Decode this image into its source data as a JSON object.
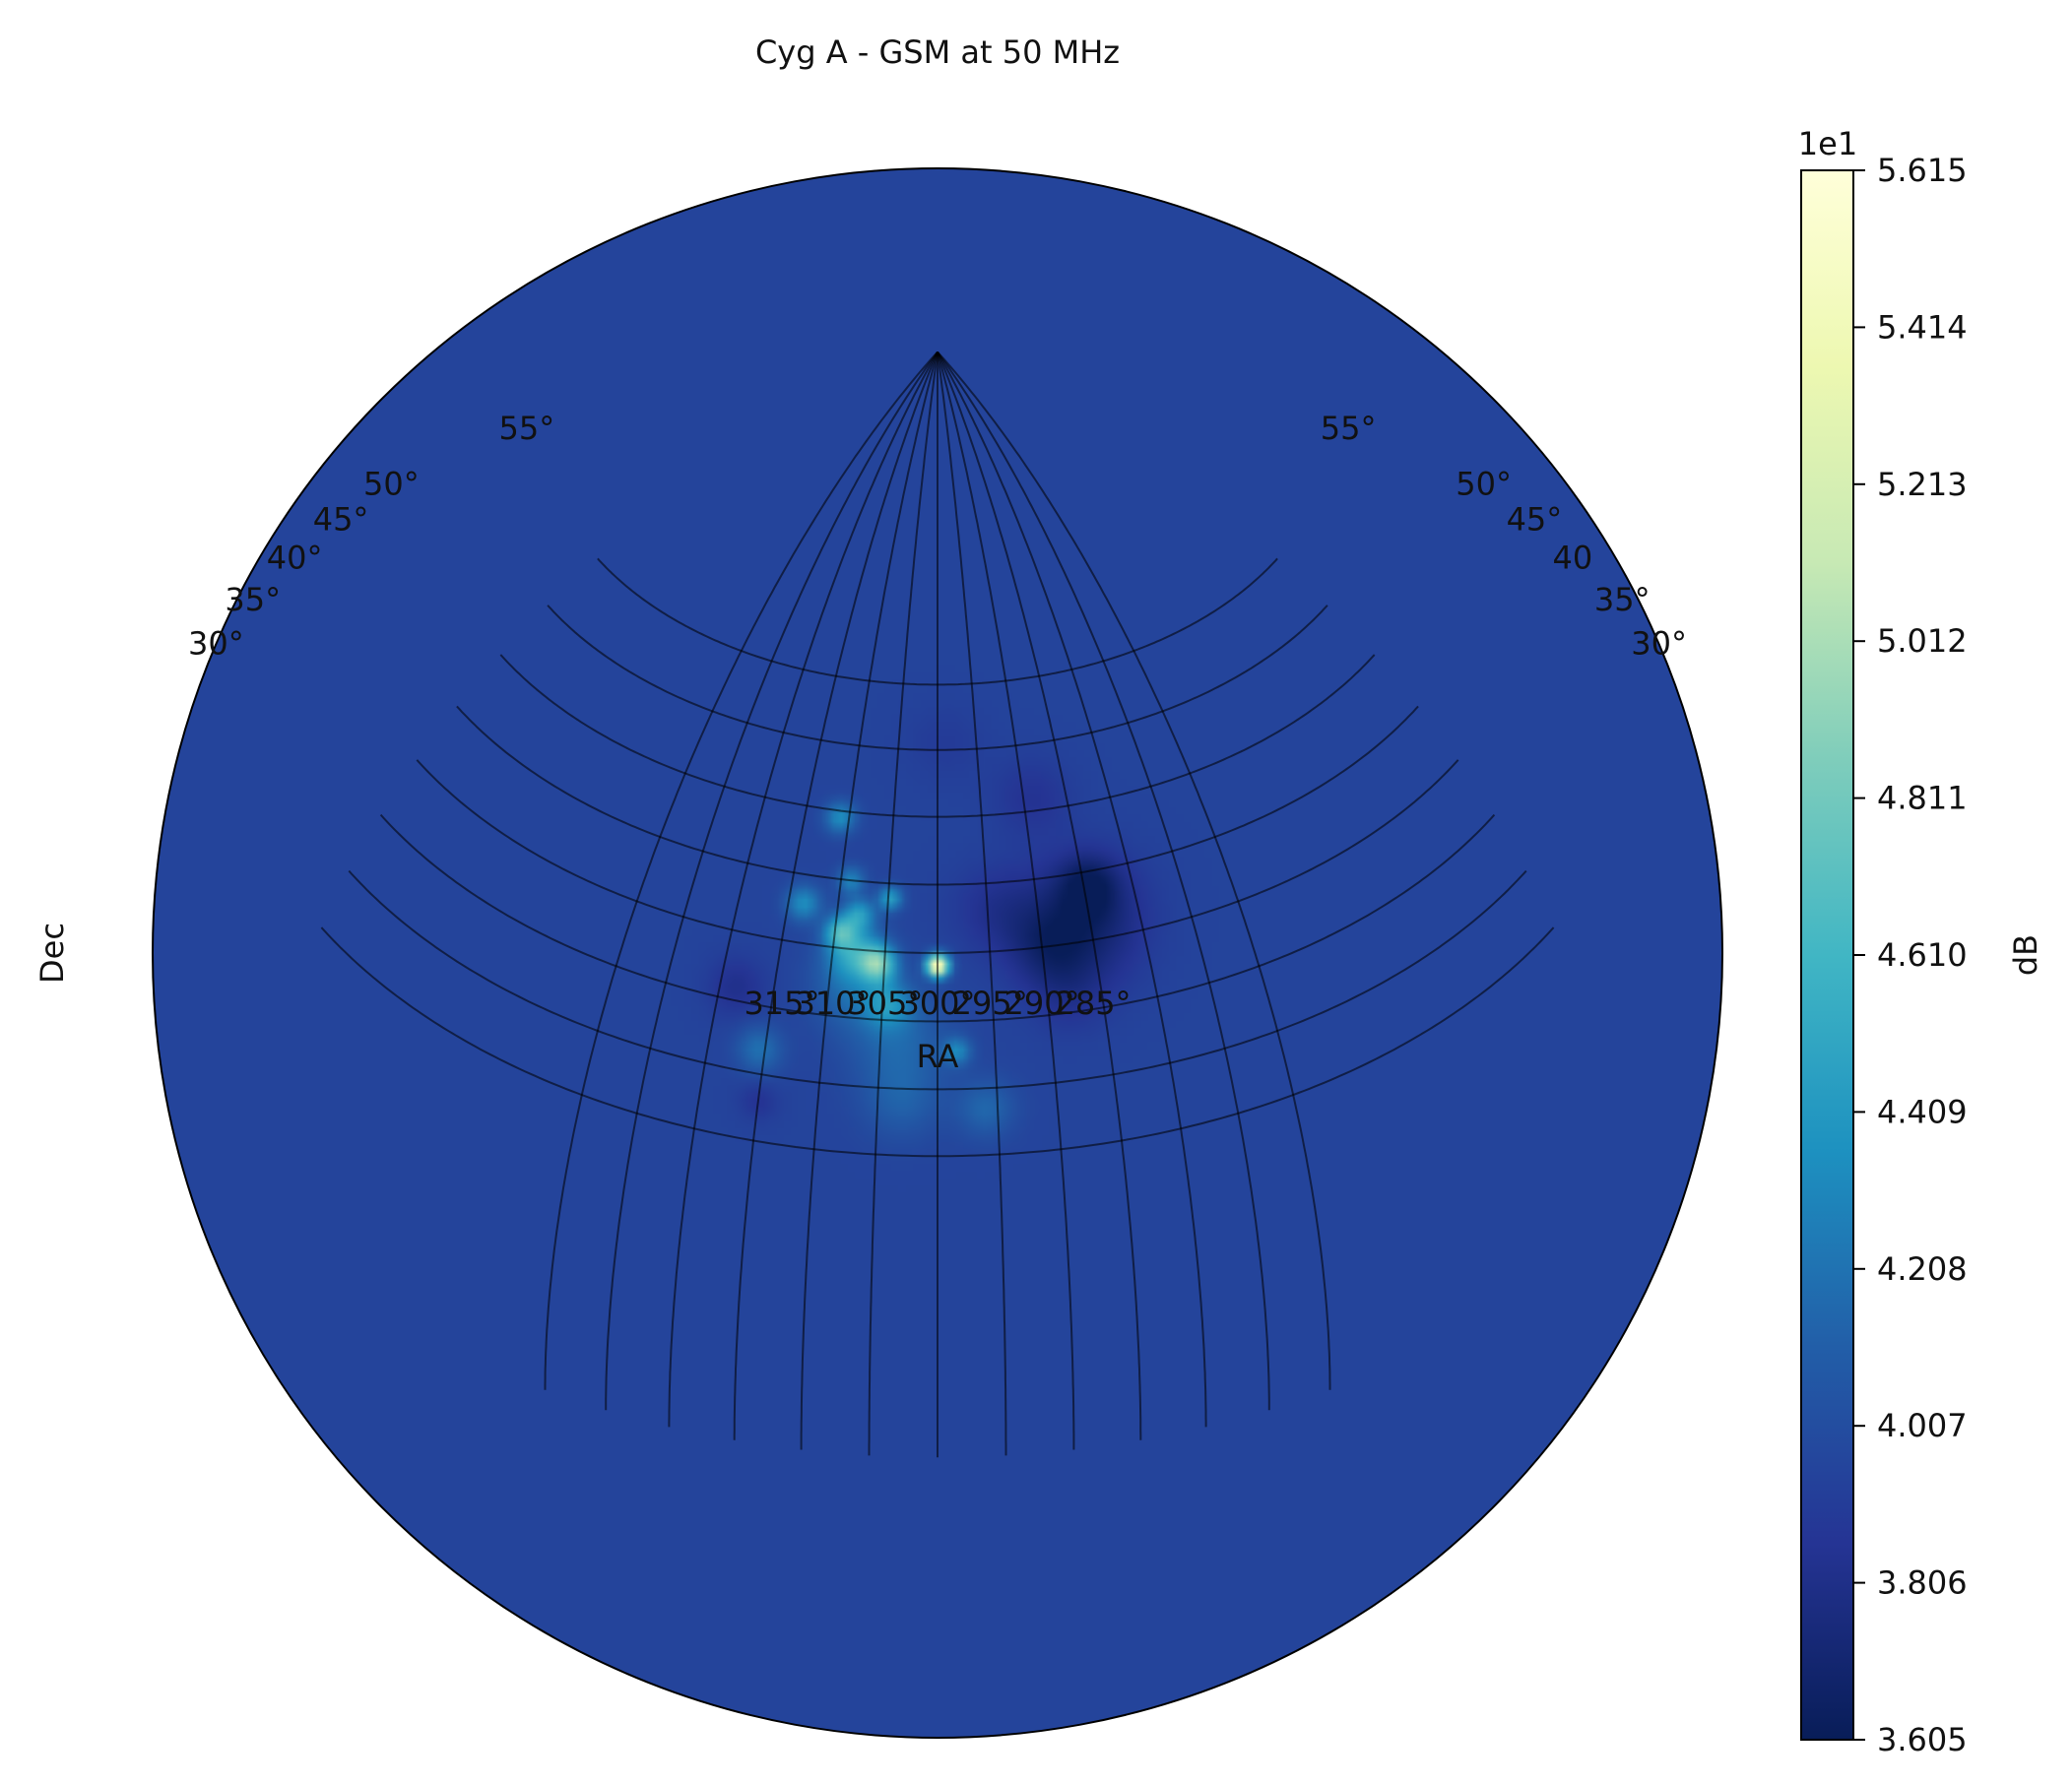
{
  "chart_data": {
    "type": "heatmap",
    "title": "Cyg A - GSM at 50 MHz",
    "projection": "orthographic",
    "center": {
      "ra": 300,
      "dec": 40
    },
    "xlabel": "RA",
    "ylabel": "Dec",
    "ra_ticks": [
      "315°",
      "310°",
      "305°",
      "300°",
      "295°",
      "290°",
      "285°"
    ],
    "ra_values": [
      315,
      310,
      305,
      300,
      295,
      290,
      285
    ],
    "dec_ticks_left": [
      "55°",
      "50°",
      "45°",
      "40°",
      "35°",
      "30°"
    ],
    "dec_ticks_right": [
      "55°",
      "50°",
      "45°",
      "40",
      "35°",
      "30°"
    ],
    "dec_values": [
      55,
      50,
      45,
      40,
      35,
      30
    ],
    "grid": true,
    "colorbar": {
      "label": "dB",
      "offset_text": "1e1",
      "ticks": [
        "5.615",
        "5.414",
        "5.213",
        "5.012",
        "4.811",
        "4.610",
        "4.409",
        "4.208",
        "4.007",
        "3.806",
        "3.605"
      ],
      "tick_values": [
        5.615,
        5.414,
        5.213,
        5.012,
        4.811,
        4.61,
        4.409,
        4.208,
        4.007,
        3.806,
        3.605
      ],
      "range": [
        3.605,
        5.615
      ],
      "colormap": "YlGnBu",
      "stops": [
        "#081d58",
        "#253494",
        "#225ea8",
        "#1d91c0",
        "#41b6c4",
        "#7fcdbb",
        "#c7e9b4",
        "#edf8b1",
        "#ffffd9"
      ]
    },
    "background_level": 3.95,
    "sources": [
      {
        "name": "Cyg A",
        "ra": 300.0,
        "dec": 39.1,
        "value": 5.615,
        "sigma": 0.55
      },
      {
        "ra": 305.6,
        "dec": 39.1,
        "value": 4.72,
        "sigma": 0.9
      },
      {
        "ra": 308.0,
        "dec": 39.8,
        "value": 4.45,
        "sigma": 1.4
      },
      {
        "ra": 309.5,
        "dec": 41.2,
        "value": 4.5,
        "sigma": 0.8
      },
      {
        "ra": 307.8,
        "dec": 42.6,
        "value": 4.4,
        "sigma": 0.8
      },
      {
        "ra": 304.8,
        "dec": 43.9,
        "value": 4.45,
        "sigma": 0.6
      },
      {
        "ra": 313.5,
        "dec": 42.9,
        "value": 4.35,
        "sigma": 0.9
      },
      {
        "ra": 309.0,
        "dec": 45.0,
        "value": 4.3,
        "sigma": 0.7
      },
      {
        "ra": 311.0,
        "dec": 49.5,
        "value": 4.35,
        "sigma": 0.8
      },
      {
        "ra": 304.5,
        "dec": 36.2,
        "value": 4.3,
        "sigma": 1.2
      },
      {
        "ra": 298.3,
        "dec": 32.8,
        "value": 4.3,
        "sigma": 0.7
      },
      {
        "ra": 315.5,
        "dec": 31.8,
        "value": 4.2,
        "sigma": 1.2
      },
      {
        "ra": 303.5,
        "dec": 33.5,
        "value": 4.15,
        "sigma": 2.5
      },
      {
        "ra": 296.0,
        "dec": 28.5,
        "value": 4.15,
        "sigma": 1.5
      },
      {
        "ra": 303.0,
        "dec": 29.0,
        "value": 4.1,
        "sigma": 2.0
      },
      {
        "ra": 308.0,
        "dec": 37.0,
        "value": 4.15,
        "sigma": 2.0
      },
      {
        "ra": 285.5,
        "dec": 41.5,
        "value": 3.68,
        "sigma": 3.0
      },
      {
        "ra": 284.5,
        "dec": 44.0,
        "value": 3.7,
        "sigma": 1.5
      },
      {
        "ra": 289.5,
        "dec": 40.0,
        "value": 3.78,
        "sigma": 2.0
      },
      {
        "ra": 294.0,
        "dec": 43.0,
        "value": 3.83,
        "sigma": 2.2
      },
      {
        "ra": 288.0,
        "dec": 36.5,
        "value": 3.85,
        "sigma": 2.0
      },
      {
        "ra": 289.0,
        "dec": 51.0,
        "value": 3.85,
        "sigma": 2.0
      },
      {
        "ra": 318.5,
        "dec": 36.0,
        "value": 3.82,
        "sigma": 1.5
      },
      {
        "ra": 315.0,
        "dec": 28.0,
        "value": 3.85,
        "sigma": 1.0
      },
      {
        "ra": 299.0,
        "dec": 55.5,
        "value": 3.9,
        "sigma": 2.0
      }
    ]
  }
}
